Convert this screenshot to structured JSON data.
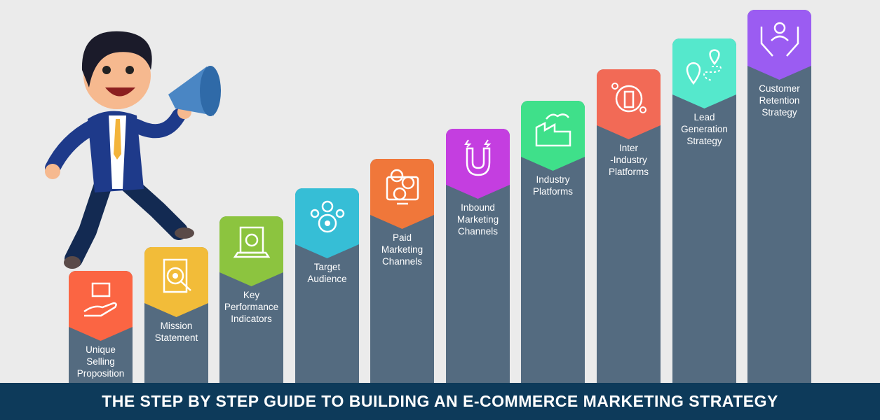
{
  "title": "THE STEP BY STEP GUIDE TO BUILDING AN E-COMMERCE MARKETING STRATEGY",
  "steps": [
    {
      "label": "Unique\nSelling\nProposition",
      "color": "#fb6543",
      "icon": "hand-box-icon"
    },
    {
      "label": "Mission\nStatement",
      "color": "#f2bc39",
      "icon": "target-document-icon"
    },
    {
      "label": "Key\nPerformance\nIndicators",
      "color": "#8cc43f",
      "icon": "laptop-report-icon"
    },
    {
      "label": "Target\nAudience",
      "color": "#36bed6",
      "icon": "audience-target-icon"
    },
    {
      "label": "Paid\nMarketing\nChannels",
      "color": "#f0773a",
      "icon": "monitor-dollar-icon"
    },
    {
      "label": "Inbound\nMarketing\nChannels",
      "color": "#c43ee0",
      "icon": "magnet-icon"
    },
    {
      "label": "Industry\nPlatforms",
      "color": "#3fe08a",
      "icon": "factory-icon"
    },
    {
      "label": "Inter\n-Industry\nPlatforms",
      "color": "#f26a56",
      "icon": "people-network-icon"
    },
    {
      "label": "Lead\nGeneration\nStrategy",
      "color": "#55e8cc",
      "icon": "location-route-icon"
    },
    {
      "label": "Customer\nRetention\nStrategy",
      "color": "#9b5cf2",
      "icon": "hands-people-icon"
    }
  ],
  "colors": {
    "column": "#546b80",
    "banner": "#0d3a5a",
    "background": "#ebebeb"
  }
}
